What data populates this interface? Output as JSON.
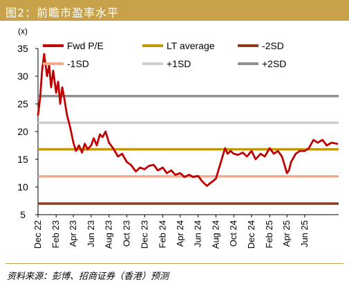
{
  "header": {
    "title": "图2：前瞻市盈率水平"
  },
  "footer": {
    "source": "资料来源：彭博、招商证券（香港）预测"
  },
  "chart_data": {
    "type": "line",
    "title": "图2：前瞻市盈率水平",
    "ylabel": "(x)",
    "xlabel": "",
    "ylim": [
      5,
      35
    ],
    "yticks": [
      5,
      10,
      15,
      20,
      25,
      30,
      35
    ],
    "xlim": [
      "2022-12-01",
      "2025-09-25"
    ],
    "xticks": [
      "Dec 22",
      "Feb 23",
      "Apr 23",
      "Jun 23",
      "Aug 23",
      "Oct 23",
      "Dec 23",
      "Feb 24",
      "Apr 24",
      "Jun 24",
      "Aug 24",
      "Oct 24",
      "Dec 24",
      "Feb 25",
      "Apr 25",
      "Jun 25"
    ],
    "xtick_dates": [
      "2022-12-01",
      "2023-02-01",
      "2023-04-01",
      "2023-06-01",
      "2023-08-01",
      "2023-10-01",
      "2023-12-01",
      "2024-02-01",
      "2024-04-01",
      "2024-06-01",
      "2024-08-01",
      "2024-10-01",
      "2024-12-01",
      "2025-02-01",
      "2025-04-01",
      "2025-06-01"
    ],
    "grid": false,
    "legend_position": "top",
    "series": [
      {
        "name": "Fwd P/E",
        "color": "#c00000",
        "x": [
          "2022-12-01",
          "2022-12-08",
          "2022-12-15",
          "2022-12-22",
          "2023-01-01",
          "2023-01-08",
          "2023-01-15",
          "2023-01-22",
          "2023-02-01",
          "2023-02-08",
          "2023-02-15",
          "2023-02-22",
          "2023-03-01",
          "2023-03-10",
          "2023-03-20",
          "2023-04-01",
          "2023-04-10",
          "2023-04-20",
          "2023-05-01",
          "2023-05-10",
          "2023-05-20",
          "2023-06-01",
          "2023-06-10",
          "2023-06-20",
          "2023-07-01",
          "2023-07-10",
          "2023-07-20",
          "2023-08-01",
          "2023-08-15",
          "2023-09-01",
          "2023-09-15",
          "2023-10-01",
          "2023-10-15",
          "2023-11-01",
          "2023-11-15",
          "2023-12-01",
          "2023-12-15",
          "2024-01-01",
          "2024-01-15",
          "2024-02-01",
          "2024-02-15",
          "2024-03-01",
          "2024-03-15",
          "2024-04-01",
          "2024-04-15",
          "2024-05-01",
          "2024-05-15",
          "2024-06-01",
          "2024-06-15",
          "2024-07-01",
          "2024-07-15",
          "2024-08-01",
          "2024-08-15",
          "2024-09-01",
          "2024-09-10",
          "2024-09-20",
          "2024-10-01",
          "2024-10-15",
          "2024-11-01",
          "2024-11-15",
          "2024-12-01",
          "2024-12-15",
          "2025-01-01",
          "2025-01-15",
          "2025-02-01",
          "2025-02-15",
          "2025-03-01",
          "2025-03-15",
          "2025-04-01",
          "2025-04-08",
          "2025-04-15",
          "2025-05-01",
          "2025-05-15",
          "2025-06-01",
          "2025-06-15",
          "2025-07-01",
          "2025-07-15",
          "2025-08-01",
          "2025-08-15",
          "2025-09-01",
          "2025-09-20"
        ],
        "values": [
          23,
          26,
          31,
          34,
          30,
          32,
          28,
          31,
          27,
          29,
          25,
          28,
          26,
          23,
          21,
          18,
          16.5,
          17.5,
          16.2,
          17.8,
          16.8,
          17.5,
          18.8,
          17.5,
          19.5,
          19,
          20,
          18,
          17,
          15.5,
          16,
          14.5,
          14,
          12.8,
          13.5,
          13.2,
          13.8,
          14,
          13,
          13.5,
          12.5,
          13,
          12.2,
          12.5,
          11.8,
          12.2,
          11.8,
          12,
          11,
          10.2,
          10.8,
          11.5,
          14,
          17,
          16,
          16.5,
          16,
          15.8,
          16.2,
          15.5,
          16.5,
          15,
          16,
          15.5,
          17,
          16,
          16.5,
          15.5,
          12.5,
          13,
          14.5,
          16,
          16.5,
          16.5,
          17,
          18.5,
          18,
          18.5,
          17.5,
          18,
          17.8
        ]
      },
      {
        "name": "LT average",
        "color": "#c09a00",
        "constant": 16.8
      },
      {
        "name": "-2SD",
        "color": "#8b3a1a",
        "constant": 7.0
      },
      {
        "name": "-1SD",
        "color": "#f5a98a",
        "constant": 11.9
      },
      {
        "name": "+1SD",
        "color": "#cccccc",
        "constant": 21.6
      },
      {
        "name": "+2SD",
        "color": "#909090",
        "constant": 26.4
      }
    ]
  }
}
